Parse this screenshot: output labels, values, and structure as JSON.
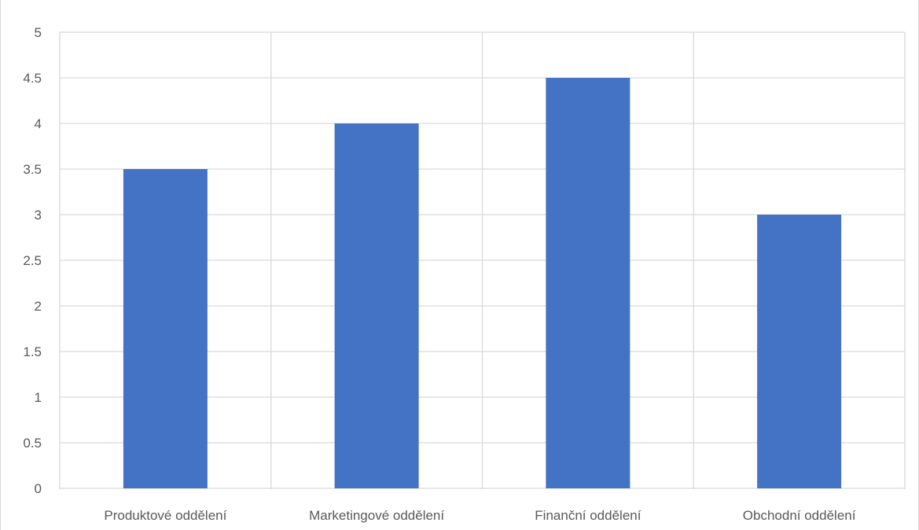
{
  "chart_data": {
    "type": "bar",
    "categories": [
      "Produktové oddělení",
      "Marketingové oddělení",
      "Finanční oddělení",
      "Obchodní oddělení"
    ],
    "values": [
      3.5,
      4,
      4.5,
      3
    ],
    "title": "",
    "xlabel": "",
    "ylabel": "",
    "ylim": [
      0,
      5
    ],
    "y_ticks": [
      "0",
      "0.5",
      "1",
      "1.5",
      "2",
      "2.5",
      "3",
      "3.5",
      "4",
      "4.5",
      "5"
    ],
    "grid": true,
    "legend": "none",
    "colors": {
      "bar": "#4472C4",
      "gridline": "#d9d9d9",
      "axis_text": "#595959"
    }
  }
}
